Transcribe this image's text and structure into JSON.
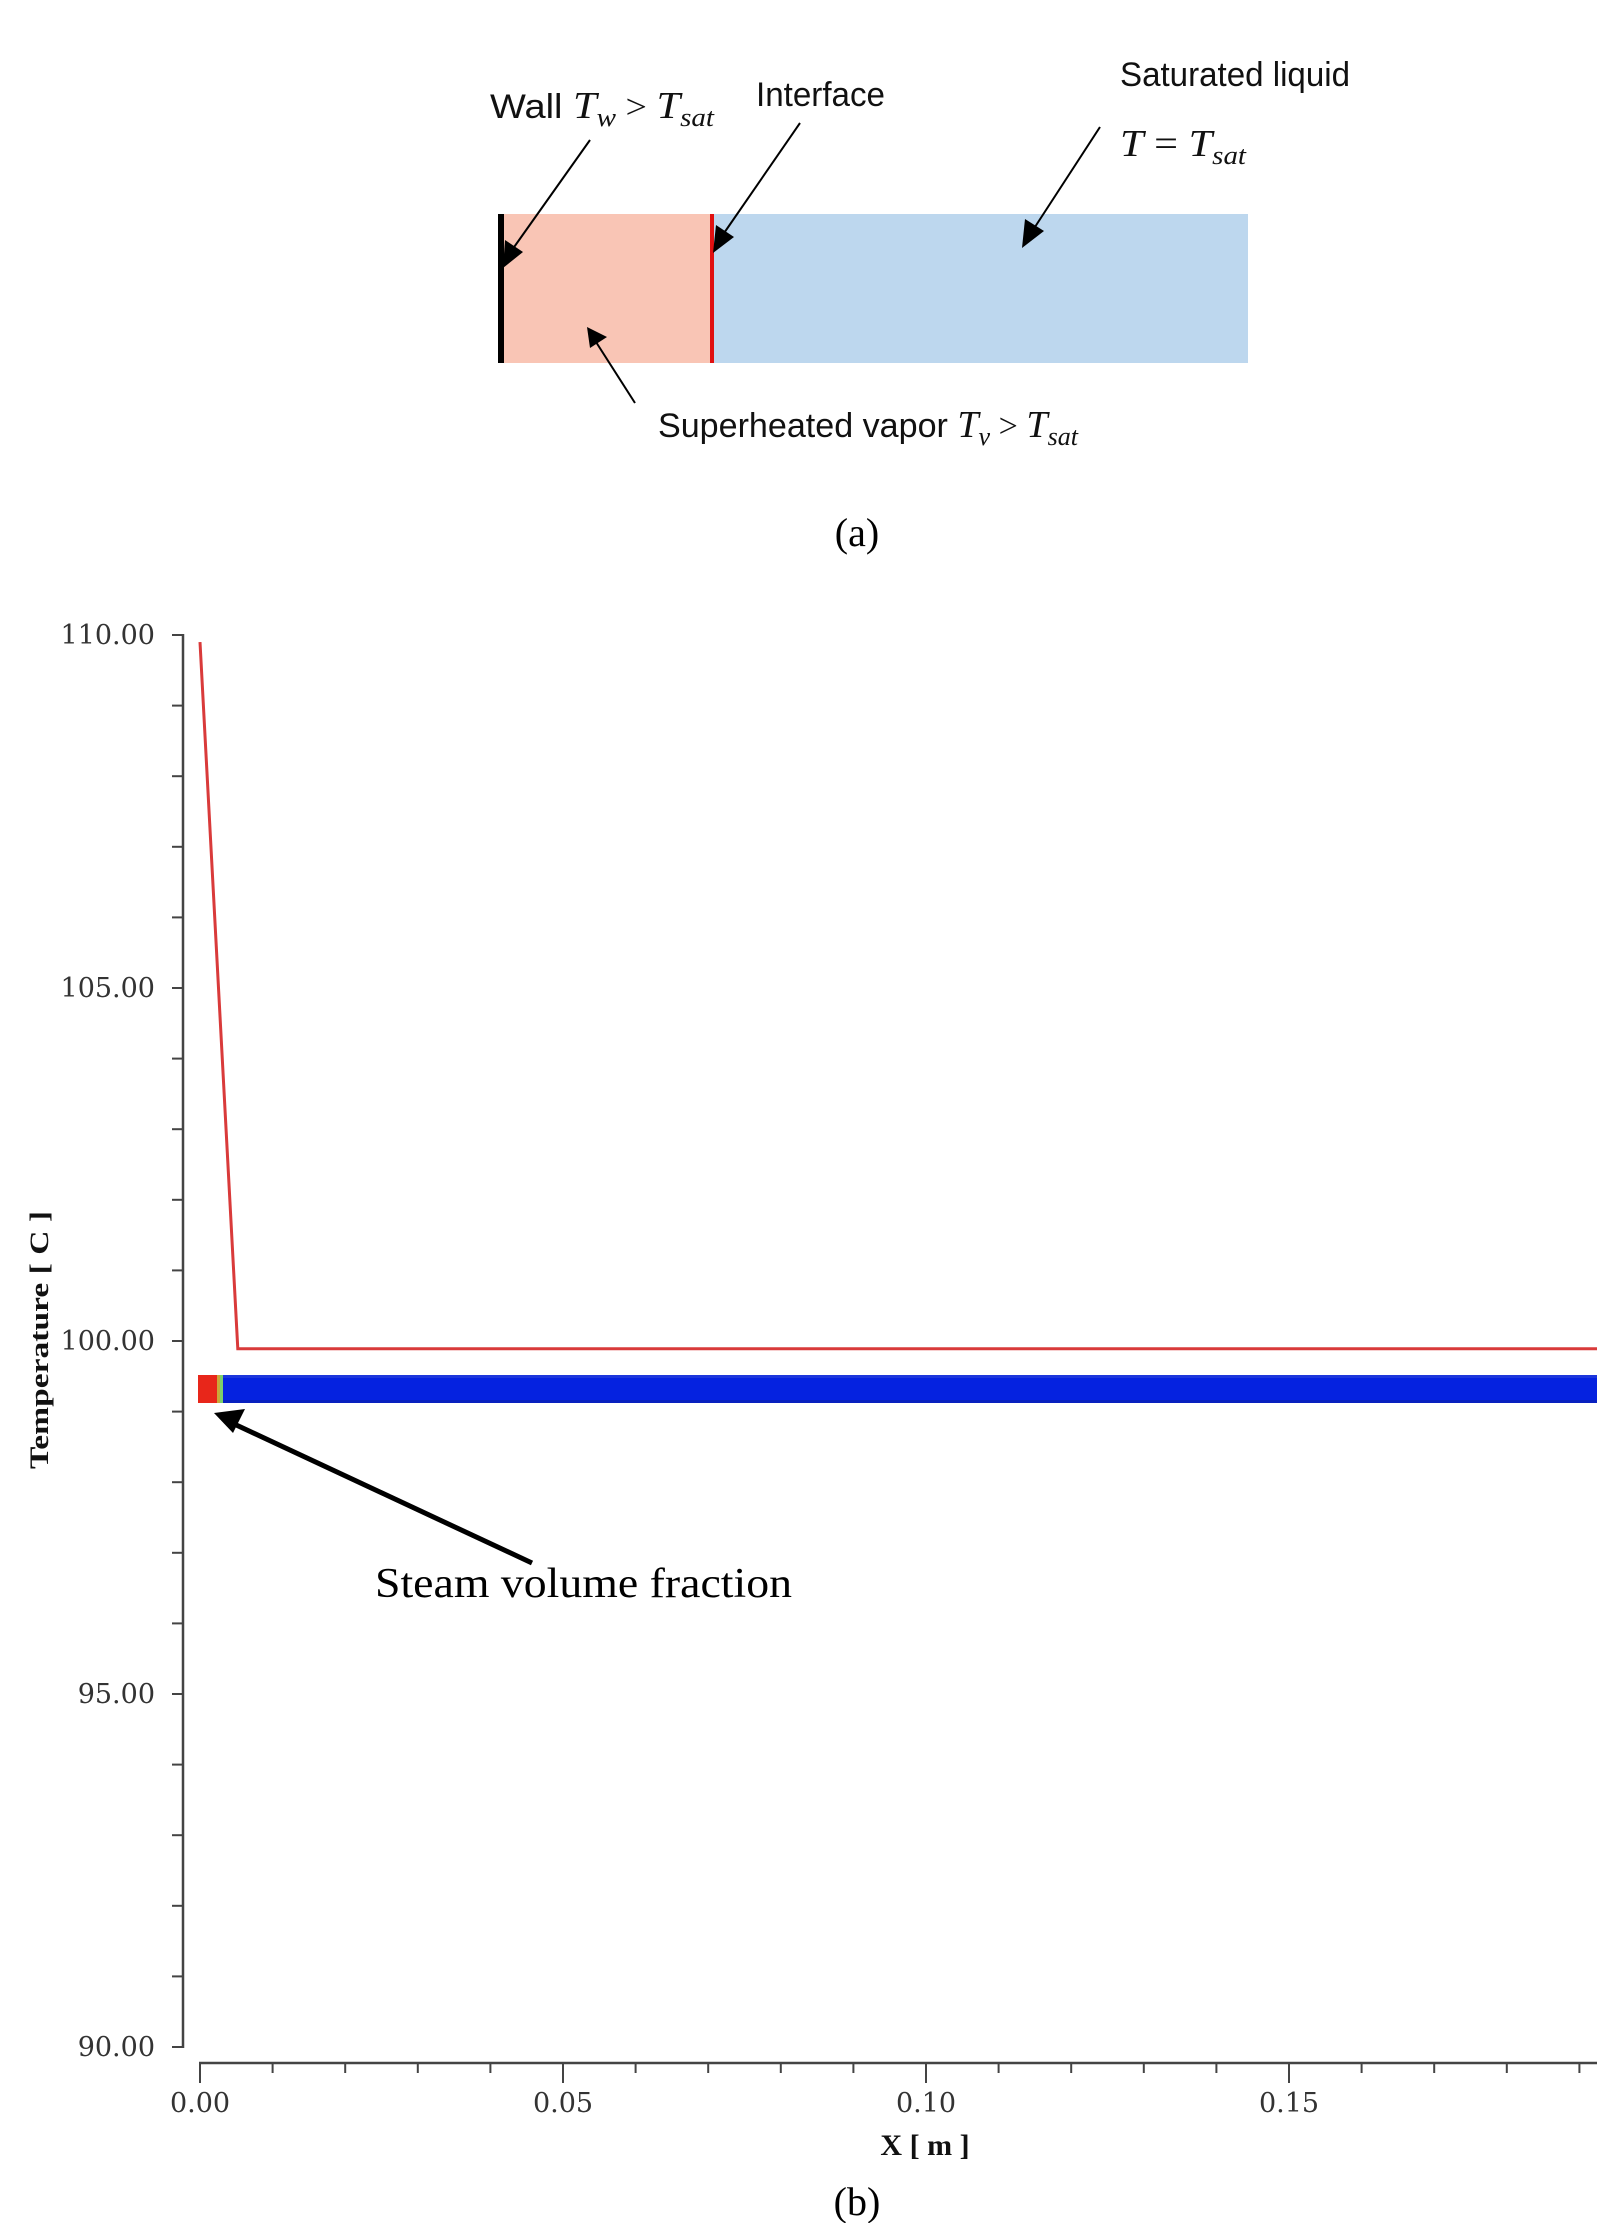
{
  "figure_a": {
    "caption": "(a)",
    "labels": {
      "wall_prefix": "Wall ",
      "wall_T": "T",
      "wall_sub": "w",
      "wall_gt": " > ",
      "wall_T2": "T",
      "wall_sub2": "sat",
      "interface": "Interface",
      "saturated_liquid": "Saturated liquid",
      "liq_T": "T",
      "liq_eq": " = ",
      "liq_T2": "T",
      "liq_sub2": "sat",
      "vapor_prefix": "Superheated vapor ",
      "vapor_T": "T",
      "vapor_sub": "v",
      "vapor_gt": " > ",
      "vapor_T2": "T",
      "vapor_sub2": "sat"
    },
    "colors": {
      "vapor_region": "#f9c5b5",
      "liquid_region": "#bdd7ee",
      "wall": "#000000",
      "interface": "#e01010"
    }
  },
  "figure_b": {
    "caption": "(b)",
    "annotation": "Steam volume fraction",
    "colors": {
      "temperature_line": "#d93a3a",
      "steam_fraction_vapor": "#e8261a",
      "steam_fraction_liquid": "#0522e0",
      "steam_fraction_transition": "#7ccf6a"
    }
  },
  "chart_data": {
    "type": "line",
    "title": "",
    "xlabel": "X [ m ]",
    "ylabel": "Temperature [ C ]",
    "xlim": [
      0.0,
      0.193
    ],
    "ylim": [
      90.0,
      110.0
    ],
    "x_ticks": [
      "0.00",
      "0.05",
      "0.10",
      "0.15"
    ],
    "x_tick_values": [
      0.0,
      0.05,
      0.1,
      0.15
    ],
    "x_minor_step": 0.01,
    "y_ticks": [
      "90.00",
      "95.00",
      "100.00",
      "105.00",
      "110.00"
    ],
    "y_tick_values": [
      90.0,
      95.0,
      100.0,
      105.0,
      110.0
    ],
    "y_minor_step": 1.0,
    "grid": false,
    "legend": null,
    "series": [
      {
        "name": "Temperature",
        "x": [
          0.0,
          0.0052,
          0.05,
          0.1,
          0.15,
          0.193
        ],
        "y": [
          109.9,
          99.89,
          99.89,
          99.89,
          99.89,
          99.89
        ]
      }
    ],
    "overlays": [
      {
        "name": "Steam volume fraction contour strip",
        "vapor_region_x": [
          0.0,
          0.0025
        ],
        "interface_x": 0.0028,
        "liquid_region_x": [
          0.003,
          0.193
        ],
        "y_position_approx": 99.3
      }
    ],
    "annotations": [
      {
        "text": "Steam volume fraction",
        "points_to_x": 0.002,
        "points_to_y": 99.0
      }
    ]
  }
}
